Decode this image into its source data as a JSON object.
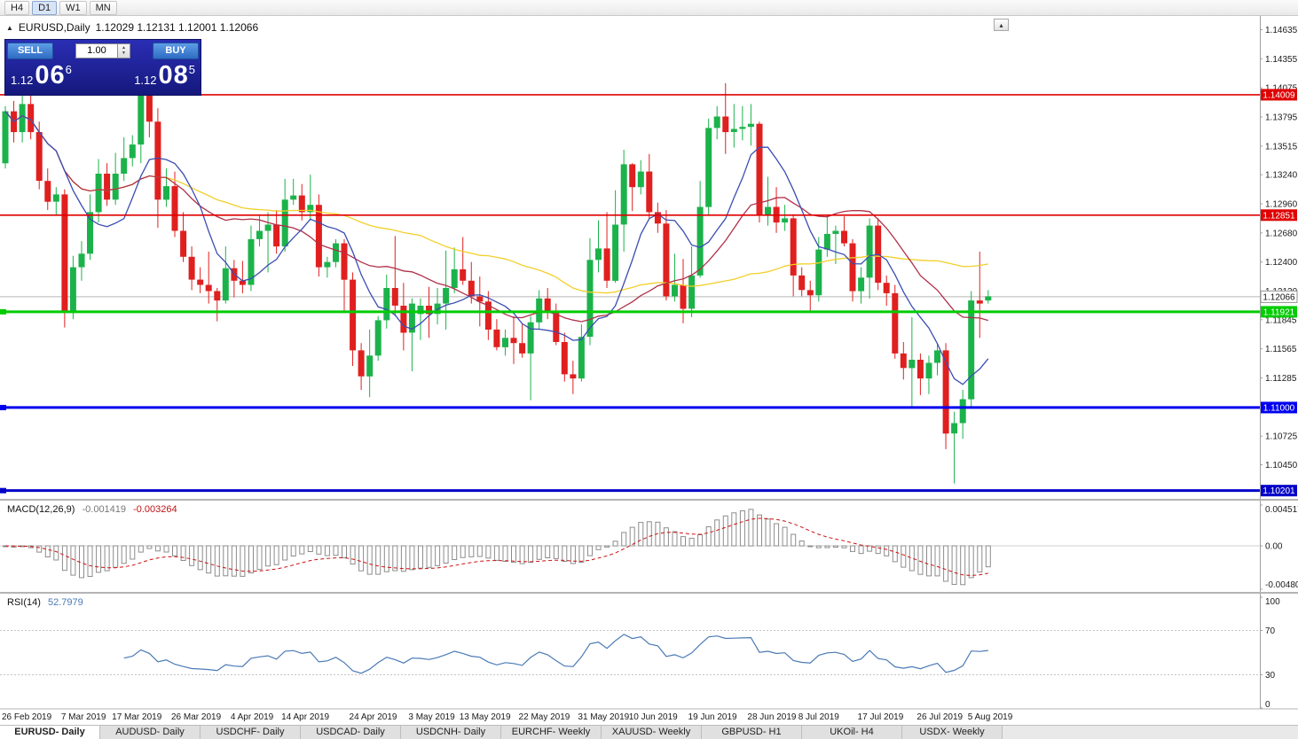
{
  "toolbar": {
    "timeframes": [
      "H4",
      "D1",
      "W1",
      "MN"
    ],
    "active": "D1"
  },
  "icons": {
    "expand": "▲",
    "restore": "▴",
    "spinner_up": "▲",
    "spinner_down": "▼"
  },
  "chart_header": {
    "title": "EURUSD,Daily",
    "ohlc": "1.12029 1.12131 1.12001 1.12066"
  },
  "trade_panel": {
    "sell_label": "SELL",
    "buy_label": "BUY",
    "volume": "1.00",
    "sell_price": {
      "prefix": "1.12",
      "big": "06",
      "sup": "6"
    },
    "buy_price": {
      "prefix": "1.12",
      "big": "08",
      "sup": "5"
    }
  },
  "macd_panel": {
    "name": "MACD(12,26,9)",
    "value": "-0.001419",
    "signal": "-0.003264",
    "ticks": [
      "0.004517",
      "0.00",
      "-0.004806"
    ]
  },
  "rsi_panel": {
    "name": "RSI(14)",
    "value": "52.7979",
    "ticks": [
      "100",
      "70",
      "30",
      "0"
    ]
  },
  "tabs": [
    "EURUSD- Daily",
    "AUDUSD- Daily",
    "USDCHF- Daily",
    "USDCAD- Daily",
    "USDCNH- Daily",
    "EURCHF- Weekly",
    "XAUUSD- Weekly",
    "GBPUSD- H1",
    "UKOil- H4",
    "USDX- Weekly"
  ],
  "active_tab": 0,
  "chart_data": {
    "type": "candlestick",
    "symbol": "EURUSD",
    "timeframe": "Daily",
    "last_ohlc": {
      "open": 1.12029,
      "high": 1.12131,
      "low": 1.12001,
      "close": 1.12066
    },
    "ylim": [
      1.1013,
      1.1475
    ],
    "y_ticks": [
      "1.14635",
      "1.14355",
      "1.14075",
      "1.13795",
      "1.13515",
      "1.13240",
      "1.12960",
      "1.12680",
      "1.12400",
      "1.12120",
      "1.11845",
      "1.11565",
      "1.11285",
      "1.10725",
      "1.10450"
    ],
    "x_labels": [
      {
        "i": 0,
        "label": "26 Feb 2019"
      },
      {
        "i": 7,
        "label": "7 Mar 2019"
      },
      {
        "i": 13,
        "label": "17 Mar 2019"
      },
      {
        "i": 20,
        "label": "26 Mar 2019"
      },
      {
        "i": 27,
        "label": "4 Apr 2019"
      },
      {
        "i": 33,
        "label": "14 Apr 2019"
      },
      {
        "i": 41,
        "label": "24 Apr 2019"
      },
      {
        "i": 48,
        "label": "3 May 2019"
      },
      {
        "i": 54,
        "label": "13 May 2019"
      },
      {
        "i": 61,
        "label": "22 May 2019"
      },
      {
        "i": 68,
        "label": "31 May 2019"
      },
      {
        "i": 74,
        "label": "10 Jun 2019"
      },
      {
        "i": 81,
        "label": "19 Jun 2019"
      },
      {
        "i": 88,
        "label": "28 Jun 2019"
      },
      {
        "i": 94,
        "label": "8 Jul 2019"
      },
      {
        "i": 101,
        "label": "17 Jul 2019"
      },
      {
        "i": 108,
        "label": "26 Jul 2019"
      },
      {
        "i": 114,
        "label": "5 Aug 2019"
      }
    ],
    "levels": [
      {
        "price": 1.14009,
        "label": "1.14009",
        "color": "#e00000",
        "width": 1.6,
        "kind": "resistance"
      },
      {
        "price": 1.12851,
        "label": "1.12851",
        "color": "#e00000",
        "width": 1.6,
        "kind": "resistance"
      },
      {
        "price": 1.11921,
        "label": "1.11921",
        "color": "#00cc00",
        "width": 3,
        "kind": "support"
      },
      {
        "price": 1.11,
        "label": "1.11000",
        "color": "#0000ee",
        "width": 3,
        "kind": "support"
      },
      {
        "price": 1.10201,
        "label": "1.10201",
        "color": "#0000c8",
        "width": 3,
        "kind": "support"
      }
    ],
    "current_price": {
      "price": 1.12066,
      "label": "1.12066"
    },
    "ma_periods": {
      "fast": 8,
      "mid": 20,
      "slow": 50
    },
    "macd": {
      "params": [
        12,
        26,
        9
      ],
      "ylim": [
        -0.004806,
        0.004517
      ]
    },
    "rsi": {
      "period": 14,
      "levels": [
        70,
        30
      ],
      "ylim": [
        0,
        100
      ]
    },
    "colors": {
      "up": "#1cb24b",
      "down": "#e01f1f",
      "ma_fast": "#3a4db2",
      "ma_mid": "#b03048",
      "ma_slow": "#f2cf2a",
      "macd_hist": "#8c8c8c",
      "macd_signal": "#cc1111",
      "rsi_line": "#4a7ab5"
    },
    "candles": [
      [
        1.1335,
        1.139,
        1.133,
        1.1385
      ],
      [
        1.1385,
        1.1395,
        1.1355,
        1.1365
      ],
      [
        1.1365,
        1.14,
        1.1355,
        1.1392
      ],
      [
        1.1392,
        1.1408,
        1.1358,
        1.1365
      ],
      [
        1.1365,
        1.1375,
        1.131,
        1.1318
      ],
      [
        1.1318,
        1.133,
        1.129,
        1.1298
      ],
      [
        1.1298,
        1.1312,
        1.1285,
        1.1305
      ],
      [
        1.1305,
        1.131,
        1.1177,
        1.1193
      ],
      [
        1.1193,
        1.1246,
        1.1185,
        1.1235
      ],
      [
        1.1235,
        1.126,
        1.1222,
        1.1248
      ],
      [
        1.1248,
        1.1305,
        1.1242,
        1.1288
      ],
      [
        1.1288,
        1.1339,
        1.1278,
        1.1325
      ],
      [
        1.1325,
        1.1335,
        1.1294,
        1.13
      ],
      [
        1.13,
        1.1345,
        1.1295,
        1.1325
      ],
      [
        1.1325,
        1.136,
        1.1318,
        1.134
      ],
      [
        1.134,
        1.1362,
        1.1332,
        1.1353
      ],
      [
        1.1353,
        1.141,
        1.1335,
        1.1402
      ],
      [
        1.1402,
        1.141,
        1.136,
        1.1375
      ],
      [
        1.1375,
        1.1388,
        1.1273,
        1.13
      ],
      [
        1.13,
        1.133,
        1.1293,
        1.1313
      ],
      [
        1.1313,
        1.1327,
        1.1264,
        1.127
      ],
      [
        1.127,
        1.1288,
        1.124,
        1.1245
      ],
      [
        1.1245,
        1.1255,
        1.1213,
        1.1223
      ],
      [
        1.1223,
        1.1235,
        1.121,
        1.1218
      ],
      [
        1.1218,
        1.125,
        1.12,
        1.1212
      ],
      [
        1.1212,
        1.1215,
        1.1183,
        1.1203
      ],
      [
        1.1203,
        1.1255,
        1.12,
        1.1234
      ],
      [
        1.1234,
        1.1242,
        1.1206,
        1.1222
      ],
      [
        1.1222,
        1.1241,
        1.121,
        1.1218
      ],
      [
        1.1218,
        1.1275,
        1.1212,
        1.1262
      ],
      [
        1.1262,
        1.1285,
        1.1255,
        1.127
      ],
      [
        1.127,
        1.1288,
        1.123,
        1.1276
      ],
      [
        1.1276,
        1.129,
        1.1248,
        1.1255
      ],
      [
        1.1255,
        1.132,
        1.125,
        1.13
      ],
      [
        1.13,
        1.132,
        1.1295,
        1.1304
      ],
      [
        1.1304,
        1.1315,
        1.128,
        1.1288
      ],
      [
        1.1288,
        1.1324,
        1.128,
        1.1295
      ],
      [
        1.1295,
        1.1305,
        1.1226,
        1.1235
      ],
      [
        1.1235,
        1.1245,
        1.1225,
        1.124
      ],
      [
        1.124,
        1.1262,
        1.1235,
        1.1258
      ],
      [
        1.1258,
        1.1262,
        1.1192,
        1.1223
      ],
      [
        1.1223,
        1.123,
        1.114,
        1.1155
      ],
      [
        1.1155,
        1.1162,
        1.1117,
        1.113
      ],
      [
        1.113,
        1.1175,
        1.111,
        1.115
      ],
      [
        1.115,
        1.1188,
        1.1145,
        1.1184
      ],
      [
        1.1184,
        1.1228,
        1.1176,
        1.1215
      ],
      [
        1.1215,
        1.1265,
        1.1188,
        1.1198
      ],
      [
        1.1198,
        1.122,
        1.1155,
        1.1172
      ],
      [
        1.1172,
        1.1205,
        1.1135,
        1.12
      ],
      [
        1.119,
        1.1205,
        1.1165,
        1.1198
      ],
      [
        1.1198,
        1.1216,
        1.1167,
        1.119
      ],
      [
        1.119,
        1.1215,
        1.118,
        1.12
      ],
      [
        1.12,
        1.1251,
        1.1175,
        1.1215
      ],
      [
        1.1215,
        1.1254,
        1.121,
        1.1233
      ],
      [
        1.1233,
        1.1264,
        1.1218,
        1.1222
      ],
      [
        1.1222,
        1.124,
        1.12,
        1.1207
      ],
      [
        1.1207,
        1.1226,
        1.1178,
        1.1202
      ],
      [
        1.1202,
        1.1212,
        1.1165,
        1.1175
      ],
      [
        1.1175,
        1.1185,
        1.1155,
        1.1158
      ],
      [
        1.1158,
        1.1175,
        1.115,
        1.1167
      ],
      [
        1.1167,
        1.1188,
        1.1142,
        1.1162
      ],
      [
        1.1162,
        1.118,
        1.1148,
        1.1152
      ],
      [
        1.1152,
        1.1188,
        1.1107,
        1.1182
      ],
      [
        1.1182,
        1.1213,
        1.1175,
        1.1205
      ],
      [
        1.1205,
        1.1215,
        1.1185,
        1.1193
      ],
      [
        1.1193,
        1.12,
        1.116,
        1.1163
      ],
      [
        1.1163,
        1.1172,
        1.1125,
        1.1132
      ],
      [
        1.1132,
        1.1145,
        1.1113,
        1.1128
      ],
      [
        1.1128,
        1.118,
        1.1125,
        1.1168
      ],
      [
        1.1168,
        1.1263,
        1.116,
        1.1242
      ],
      [
        1.1242,
        1.128,
        1.123,
        1.1253
      ],
      [
        1.1253,
        1.1288,
        1.1215,
        1.1222
      ],
      [
        1.1222,
        1.1309,
        1.122,
        1.1276
      ],
      [
        1.1276,
        1.1348,
        1.125,
        1.1334
      ],
      [
        1.1334,
        1.1335,
        1.1289,
        1.1312
      ],
      [
        1.1312,
        1.1338,
        1.1305,
        1.1327
      ],
      [
        1.1327,
        1.1344,
        1.1282,
        1.1288
      ],
      [
        1.1288,
        1.1297,
        1.1268,
        1.1277
      ],
      [
        1.1277,
        1.129,
        1.1203,
        1.1207
      ],
      [
        1.1207,
        1.1248,
        1.1202,
        1.1218
      ],
      [
        1.1218,
        1.1243,
        1.1181,
        1.1195
      ],
      [
        1.1195,
        1.1255,
        1.1187,
        1.1227
      ],
      [
        1.1227,
        1.1318,
        1.1225,
        1.1293
      ],
      [
        1.1293,
        1.1378,
        1.1285,
        1.1369
      ],
      [
        1.1369,
        1.139,
        1.1358,
        1.138
      ],
      [
        1.138,
        1.1412,
        1.1344,
        1.1365
      ],
      [
        1.1365,
        1.1392,
        1.135,
        1.1368
      ],
      [
        1.1368,
        1.139,
        1.1357,
        1.137
      ],
      [
        1.137,
        1.1392,
        1.1352,
        1.1373
      ],
      [
        1.1373,
        1.1375,
        1.1278,
        1.1285
      ],
      [
        1.1285,
        1.1322,
        1.1275,
        1.1293
      ],
      [
        1.1293,
        1.1312,
        1.1268,
        1.1278
      ],
      [
        1.1278,
        1.1295,
        1.127,
        1.1282
      ],
      [
        1.1282,
        1.1286,
        1.1207,
        1.1227
      ],
      [
        1.1227,
        1.1235,
        1.1207,
        1.1213
      ],
      [
        1.1213,
        1.1222,
        1.1193,
        1.1208
      ],
      [
        1.1208,
        1.1264,
        1.1202,
        1.1252
      ],
      [
        1.1252,
        1.1285,
        1.1245,
        1.1267
      ],
      [
        1.1267,
        1.1275,
        1.1238,
        1.127
      ],
      [
        1.127,
        1.1284,
        1.1255,
        1.1258
      ],
      [
        1.1258,
        1.1262,
        1.1202,
        1.1212
      ],
      [
        1.1212,
        1.1235,
        1.12,
        1.1225
      ],
      [
        1.1225,
        1.1282,
        1.1205,
        1.1275
      ],
      [
        1.1275,
        1.1282,
        1.1213,
        1.122
      ],
      [
        1.122,
        1.1227,
        1.1198,
        1.121
      ],
      [
        1.121,
        1.1218,
        1.1147,
        1.1152
      ],
      [
        1.1152,
        1.1163,
        1.1127,
        1.1138
      ],
      [
        1.1138,
        1.1187,
        1.1101,
        1.1146
      ],
      [
        1.1146,
        1.1152,
        1.1112,
        1.1128
      ],
      [
        1.1128,
        1.115,
        1.1113,
        1.1143
      ],
      [
        1.1143,
        1.1162,
        1.1131,
        1.1155
      ],
      [
        1.1155,
        1.1162,
        1.106,
        1.1075
      ],
      [
        1.1075,
        1.1096,
        1.1027,
        1.1085
      ],
      [
        1.1085,
        1.1117,
        1.107,
        1.1108
      ],
      [
        1.1108,
        1.1212,
        1.1101,
        1.1203
      ],
      [
        1.1203,
        1.125,
        1.1167,
        1.12
      ],
      [
        1.1203,
        1.1213,
        1.12,
        1.1207
      ]
    ]
  }
}
